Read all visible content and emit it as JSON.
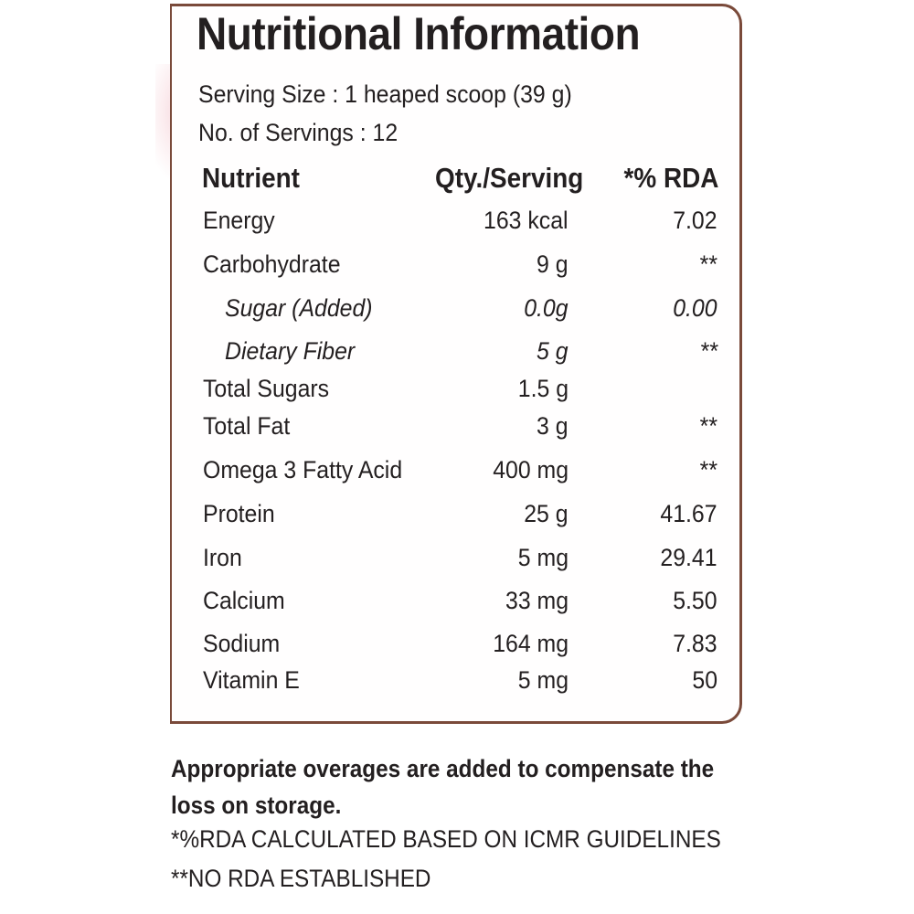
{
  "label": {
    "title": "Nutritional Information",
    "serving_size": "Serving Size : 1 heaped scoop (39 g)",
    "servings": "No. of Servings : 12",
    "headers": {
      "nutrient": "Nutrient",
      "qty": "Qty./Serving",
      "rda": "*% RDA"
    },
    "rows": [
      {
        "name": "Energy",
        "qty": "163 kcal",
        "rda": "7.02"
      },
      {
        "name": "Carbohydrate",
        "qty": "9 g",
        "rda": "**"
      },
      {
        "name": "Sugar (Added)",
        "qty": "0.0g",
        "rda": "0.00"
      },
      {
        "name": "Dietary Fiber",
        "qty": "5 g",
        "rda": "**"
      },
      {
        "name": "Total Sugars",
        "qty": "1.5 g",
        "rda": ""
      },
      {
        "name": "Total Fat",
        "qty": "3 g",
        "rda": "**"
      },
      {
        "name": "Omega 3 Fatty Acid",
        "qty": "400 mg",
        "rda": "**"
      },
      {
        "name": "Protein",
        "qty": "25 g",
        "rda": "41.67"
      },
      {
        "name": "Iron",
        "qty": "5 mg",
        "rda": "29.41"
      },
      {
        "name": "Calcium",
        "qty": "33 mg",
        "rda": "5.50"
      },
      {
        "name": "Sodium",
        "qty": "164 mg",
        "rda": "7.83"
      },
      {
        "name": "Vitamin E",
        "qty": "5 mg",
        "rda": "50"
      }
    ]
  },
  "footer": {
    "overages_line1": "Appropriate overages are added to compensate the",
    "overages_line2": "loss on storage.",
    "rda_note": "*%RDA CALCULATED BASED ON ICMR GUIDELINES",
    "no_rda_note": "**NO RDA ESTABLISHED"
  },
  "colors": {
    "border": "#7a4a3a",
    "text": "#231f20"
  }
}
